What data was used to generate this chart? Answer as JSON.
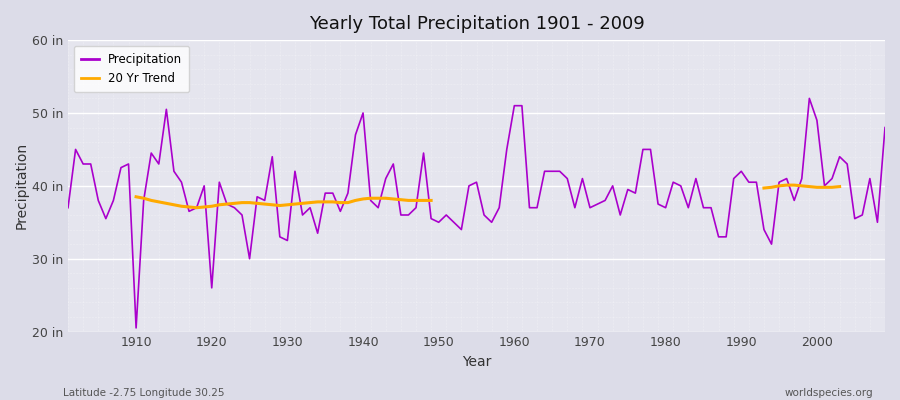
{
  "title": "Yearly Total Precipitation 1901 - 2009",
  "xlabel": "Year",
  "ylabel": "Precipitation",
  "xlim": [
    1901,
    2009
  ],
  "ylim": [
    20,
    60
  ],
  "yticks": [
    20,
    30,
    40,
    50,
    60
  ],
  "ytick_labels": [
    "20 in",
    "30 in",
    "40 in",
    "50 in",
    "60 in"
  ],
  "bg_outer": "#dcdce8",
  "bg_plot": "#e5e5ee",
  "precip_color": "#aa00cc",
  "trend_color": "#ffaa00",
  "legend_labels": [
    "Precipitation",
    "20 Yr Trend"
  ],
  "caption_left": "Latitude -2.75 Longitude 30.25",
  "caption_right": "worldspecies.org",
  "years": [
    1901,
    1902,
    1903,
    1904,
    1905,
    1906,
    1907,
    1908,
    1909,
    1910,
    1911,
    1912,
    1913,
    1914,
    1915,
    1916,
    1917,
    1918,
    1919,
    1920,
    1921,
    1922,
    1923,
    1924,
    1925,
    1926,
    1927,
    1928,
    1929,
    1930,
    1931,
    1932,
    1933,
    1934,
    1935,
    1936,
    1937,
    1938,
    1939,
    1940,
    1941,
    1942,
    1943,
    1944,
    1945,
    1946,
    1947,
    1948,
    1949,
    1950,
    1951,
    1952,
    1953,
    1954,
    1955,
    1956,
    1957,
    1958,
    1959,
    1960,
    1961,
    1962,
    1963,
    1964,
    1965,
    1966,
    1967,
    1968,
    1969,
    1970,
    1971,
    1972,
    1973,
    1974,
    1975,
    1976,
    1977,
    1978,
    1979,
    1980,
    1981,
    1982,
    1983,
    1984,
    1985,
    1986,
    1987,
    1988,
    1989,
    1990,
    1991,
    1992,
    1993,
    1994,
    1995,
    1996,
    1997,
    1998,
    1999,
    2000,
    2001,
    2002,
    2003,
    2004,
    2005,
    2006,
    2007,
    2008,
    2009
  ],
  "precip": [
    37.0,
    45.0,
    43.0,
    43.0,
    38.0,
    35.5,
    38.0,
    42.5,
    43.0,
    20.5,
    38.0,
    44.5,
    43.0,
    50.5,
    42.0,
    40.5,
    36.5,
    37.0,
    40.0,
    26.0,
    40.5,
    37.5,
    37.0,
    36.0,
    30.0,
    38.5,
    38.0,
    44.0,
    33.0,
    32.5,
    42.0,
    36.0,
    37.0,
    33.5,
    39.0,
    39.0,
    36.5,
    39.0,
    47.0,
    50.0,
    38.0,
    37.0,
    41.0,
    43.0,
    36.0,
    36.0,
    37.0,
    44.5,
    35.5,
    35.0,
    36.0,
    35.0,
    34.0,
    40.0,
    40.5,
    36.0,
    35.0,
    37.0,
    45.0,
    51.0,
    51.0,
    37.0,
    37.0,
    42.0,
    42.0,
    42.0,
    41.0,
    37.0,
    41.0,
    37.0,
    37.5,
    38.0,
    40.0,
    36.0,
    39.5,
    39.0,
    45.0,
    45.0,
    37.5,
    37.0,
    40.5,
    40.0,
    37.0,
    41.0,
    37.0,
    37.0,
    33.0,
    33.0,
    41.0,
    42.0,
    40.5,
    40.5,
    34.0,
    32.0,
    40.5,
    41.0,
    38.0,
    41.0,
    52.0,
    49.0,
    40.0,
    41.0,
    44.0,
    43.0,
    35.5,
    36.0,
    41.0,
    35.0,
    48.0
  ],
  "trend_segment1_years": [
    1910,
    1911,
    1912,
    1913,
    1914,
    1915,
    1916,
    1917,
    1918,
    1919,
    1920,
    1921,
    1922,
    1923,
    1924,
    1925,
    1926,
    1927,
    1928,
    1929,
    1930,
    1931,
    1932,
    1933,
    1934,
    1935,
    1936,
    1937,
    1938,
    1939,
    1940,
    1941,
    1942,
    1943,
    1944,
    1945,
    1946,
    1947,
    1948,
    1949
  ],
  "trend_segment1_vals": [
    38.5,
    38.3,
    38.0,
    37.8,
    37.6,
    37.4,
    37.2,
    37.1,
    37.0,
    37.1,
    37.2,
    37.4,
    37.5,
    37.6,
    37.7,
    37.7,
    37.6,
    37.5,
    37.4,
    37.3,
    37.4,
    37.5,
    37.6,
    37.7,
    37.8,
    37.8,
    37.8,
    37.7,
    37.7,
    38.0,
    38.2,
    38.3,
    38.3,
    38.3,
    38.2,
    38.1,
    38.0,
    38.0,
    38.0,
    38.0
  ],
  "trend_segment2_years": [
    1993,
    1994,
    1995,
    1996,
    1997,
    1998,
    1999,
    2000,
    2001,
    2002,
    2003
  ],
  "trend_segment2_vals": [
    39.7,
    39.8,
    40.0,
    40.1,
    40.1,
    40.0,
    39.9,
    39.8,
    39.8,
    39.8,
    39.9
  ],
  "xtick_years": [
    1910,
    1920,
    1930,
    1940,
    1950,
    1960,
    1970,
    1980,
    1990,
    2000
  ]
}
